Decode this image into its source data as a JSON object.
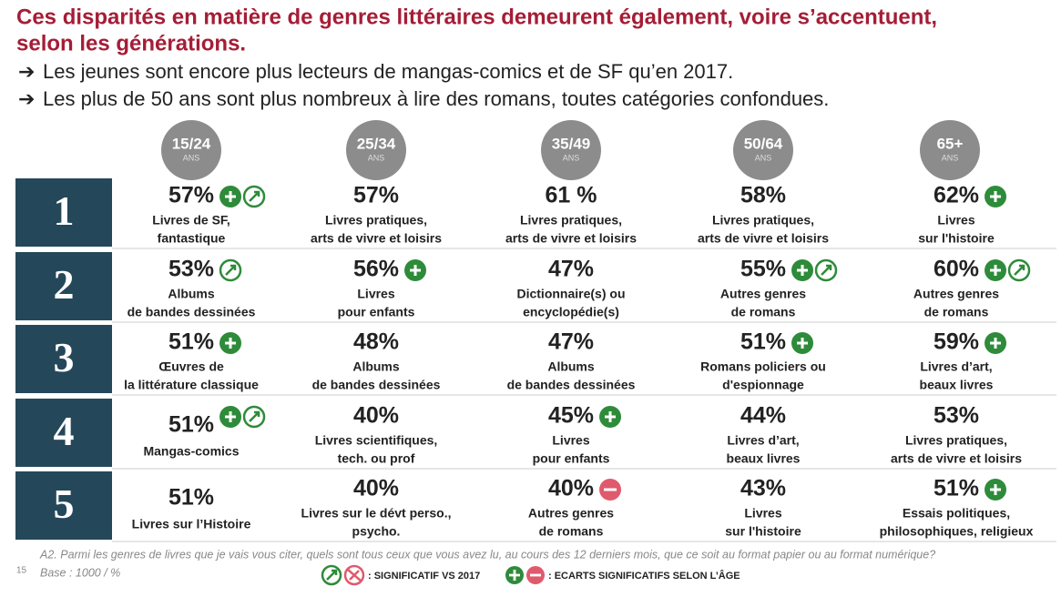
{
  "header": {
    "title_lines": [
      "Ces disparités en matière de genres littéraires demeurent également, voire s’accentuent,",
      "selon les générations."
    ],
    "bullets": [
      "Les jeunes sont encore plus lecteurs de mangas-comics et de SF qu’en 2017.",
      "Les plus de 50 ans sont plus nombreux à lire des romans, toutes catégories confondues."
    ]
  },
  "age_groups": [
    {
      "label": "15/24",
      "unit": "ANS"
    },
    {
      "label": "25/34",
      "unit": "ANS"
    },
    {
      "label": "35/49",
      "unit": "ANS"
    },
    {
      "label": "50/64",
      "unit": "ANS"
    },
    {
      "label": "65+",
      "unit": "ANS"
    }
  ],
  "rows": [
    {
      "rank": "1",
      "cells": [
        {
          "value": "57%",
          "lines": [
            "Livres de SF,",
            "fantastique"
          ]
        },
        {
          "value": "57%",
          "lines": [
            "Livres pratiques,",
            "arts de vivre et loisirs"
          ]
        },
        {
          "value": "61 %",
          "lines": [
            "Livres pratiques,",
            "arts de vivre et loisirs"
          ]
        },
        {
          "value": "58%",
          "lines": [
            "Livres pratiques,",
            "arts de vivre et loisirs"
          ]
        },
        {
          "value": "62%",
          "lines": [
            "Livres",
            "sur l'histoire"
          ]
        }
      ]
    },
    {
      "rank": "2",
      "cells": [
        {
          "value": "53%",
          "lines": [
            "Albums",
            "de bandes dessinées"
          ]
        },
        {
          "value": "56%",
          "lines": [
            "Livres",
            "pour enfants"
          ]
        },
        {
          "value": "47%",
          "lines": [
            "Dictionnaire(s) ou",
            "encyclopédie(s)"
          ]
        },
        {
          "value": "55%",
          "lines": [
            "Autres genres",
            "de romans"
          ]
        },
        {
          "value": "60%",
          "lines": [
            "Autres genres",
            "de romans"
          ]
        }
      ]
    },
    {
      "rank": "3",
      "cells": [
        {
          "value": "51%",
          "lines": [
            "Œuvres de",
            "la littérature classique"
          ]
        },
        {
          "value": "48%",
          "lines": [
            "Albums",
            "de bandes dessinées"
          ]
        },
        {
          "value": "47%",
          "lines": [
            "Albums",
            "de bandes dessinées"
          ]
        },
        {
          "value": "51%",
          "lines": [
            "Romans policiers ou",
            "d'espionnage"
          ]
        },
        {
          "value": "59%",
          "lines": [
            "Livres d’art,",
            "beaux livres"
          ]
        }
      ]
    },
    {
      "rank": "4",
      "cells": [
        {
          "value": "51%",
          "lines": [
            "Mangas-comics"
          ]
        },
        {
          "value": "40%",
          "lines": [
            "Livres scientifiques,",
            "tech. ou prof"
          ]
        },
        {
          "value": "45%",
          "lines": [
            "Livres",
            "pour enfants"
          ]
        },
        {
          "value": "44%",
          "lines": [
            "Livres d’art,",
            "beaux livres"
          ]
        },
        {
          "value": "53%",
          "lines": [
            "Livres pratiques,",
            "arts de vivre et loisirs"
          ]
        }
      ]
    },
    {
      "rank": "5",
      "cells": [
        {
          "value": "51%",
          "lines": [
            "Livres sur l’Histoire"
          ]
        },
        {
          "value": "40%",
          "lines": [
            "Livres sur le dévt perso.,",
            "psycho."
          ]
        },
        {
          "value": "40%",
          "lines": [
            "Autres genres",
            "de romans"
          ]
        },
        {
          "value": "43%",
          "lines": [
            "Livres",
            "sur l'histoire"
          ]
        },
        {
          "value": "51%",
          "lines": [
            "Essais politiques,",
            "philosophiques, religieux"
          ]
        }
      ]
    }
  ],
  "footer": {
    "question": "A2. Parmi les genres de livres que je vais vous citer, quels sont tous ceux que vous avez lu, au cours des 12 derniers mois, que ce soit au format papier ou au format numérique?",
    "base": "Base : 1000 / %",
    "page": "15",
    "legend_2017": ": SIGNIFICATIF VS 2017",
    "legend_age": ": ECARTS SIGNIFICATIFS SELON L’ÂGE"
  }
}
